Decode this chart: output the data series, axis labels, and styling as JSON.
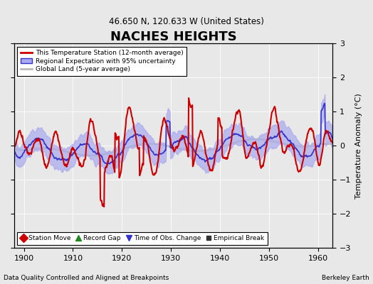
{
  "title": "NACHES HEIGHTS",
  "subtitle": "46.650 N, 120.633 W (United States)",
  "ylabel": "Temperature Anomaly (°C)",
  "xlabel_left": "Data Quality Controlled and Aligned at Breakpoints",
  "xlabel_right": "Berkeley Earth",
  "ylim": [
    -3,
    3
  ],
  "xlim": [
    1898,
    1963
  ],
  "xticks": [
    1900,
    1910,
    1920,
    1930,
    1940,
    1950,
    1960
  ],
  "yticks_left": [
    -3,
    -2,
    -1,
    0,
    1,
    2,
    3
  ],
  "yticks_right": [
    -3,
    -2,
    -1,
    0,
    1,
    2,
    3
  ],
  "bg_color": "#e8e8e8",
  "plot_bg_color": "#e8e8e8",
  "station_color": "#cc0000",
  "regional_color": "#3333cc",
  "regional_fill_color": "#aaaaee",
  "global_color": "#bbbbbb",
  "legend1_entries": [
    {
      "label": "This Temperature Station (12-month average)",
      "color": "#cc0000",
      "lw": 2.0
    },
    {
      "label": "Regional Expectation with 95% uncertainty",
      "color": "#3333cc",
      "fill": "#aaaaee",
      "lw": 1.5
    },
    {
      "label": "Global Land (5-year average)",
      "color": "#bbbbbb",
      "lw": 2.0
    }
  ],
  "legend2_entries": [
    {
      "label": "Station Move",
      "marker": "D",
      "color": "#cc0000"
    },
    {
      "label": "Record Gap",
      "marker": "^",
      "color": "#228822"
    },
    {
      "label": "Time of Obs. Change",
      "marker": "v",
      "color": "#3333cc"
    },
    {
      "label": "Empirical Break",
      "marker": "s",
      "color": "#333333"
    }
  ],
  "seed": 42,
  "n_years": 65,
  "start_year": 1898
}
